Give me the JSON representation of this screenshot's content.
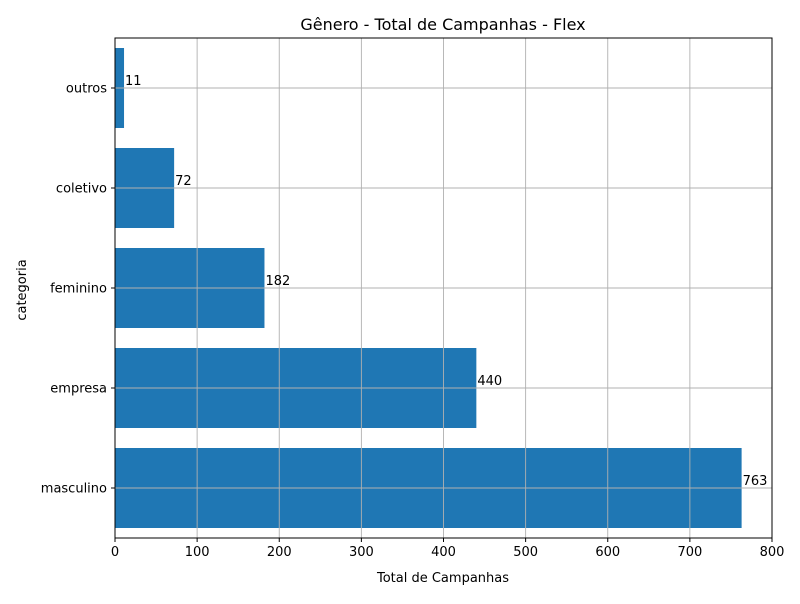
{
  "chart_data": {
    "type": "bar",
    "orientation": "horizontal",
    "title": "Gênero - Total de Campanhas - Flex",
    "xlabel": "Total de Campanhas",
    "ylabel": "categoria",
    "categories": [
      "masculino",
      "empresa",
      "feminino",
      "coletivo",
      "outros"
    ],
    "values": [
      763,
      440,
      182,
      72,
      11
    ],
    "data_labels": [
      "763",
      "440",
      "182",
      "72",
      "11"
    ],
    "xlim": [
      0,
      800
    ],
    "xticks": [
      0,
      100,
      200,
      300,
      400,
      500,
      600,
      700,
      800
    ],
    "grid": true,
    "bar_color": "#1f77b4"
  }
}
